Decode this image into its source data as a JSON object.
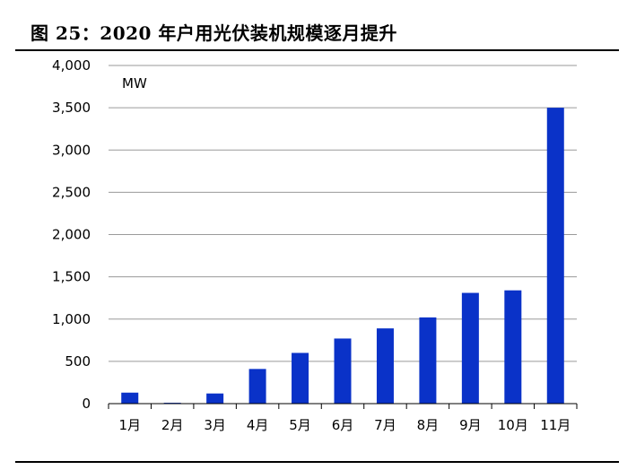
{
  "title": "图 25：2020 年户用光伏装机规模逐月提升",
  "colors": {
    "bar": "#0a32c8",
    "grid": "#9a9a9a",
    "axis": "#000000",
    "text": "#000000"
  },
  "chart_data": {
    "type": "bar",
    "title": "",
    "xlabel": "",
    "ylabel": "MW",
    "unit_label": "MW",
    "categories": [
      "1月",
      "2月",
      "3月",
      "4月",
      "5月",
      "6月",
      "7月",
      "8月",
      "9月",
      "10月",
      "11月"
    ],
    "values": [
      130,
      10,
      120,
      410,
      600,
      770,
      890,
      1020,
      1310,
      1340,
      3500
    ],
    "ylim": [
      0,
      4000
    ],
    "yticks": [
      0,
      500,
      1000,
      1500,
      2000,
      2500,
      3000,
      3500,
      4000
    ],
    "ytick_labels": [
      "0",
      "500",
      "1,000",
      "1,500",
      "2,000",
      "2,500",
      "3,000",
      "3,500",
      "4,000"
    ],
    "grid": true,
    "legend": "none"
  }
}
